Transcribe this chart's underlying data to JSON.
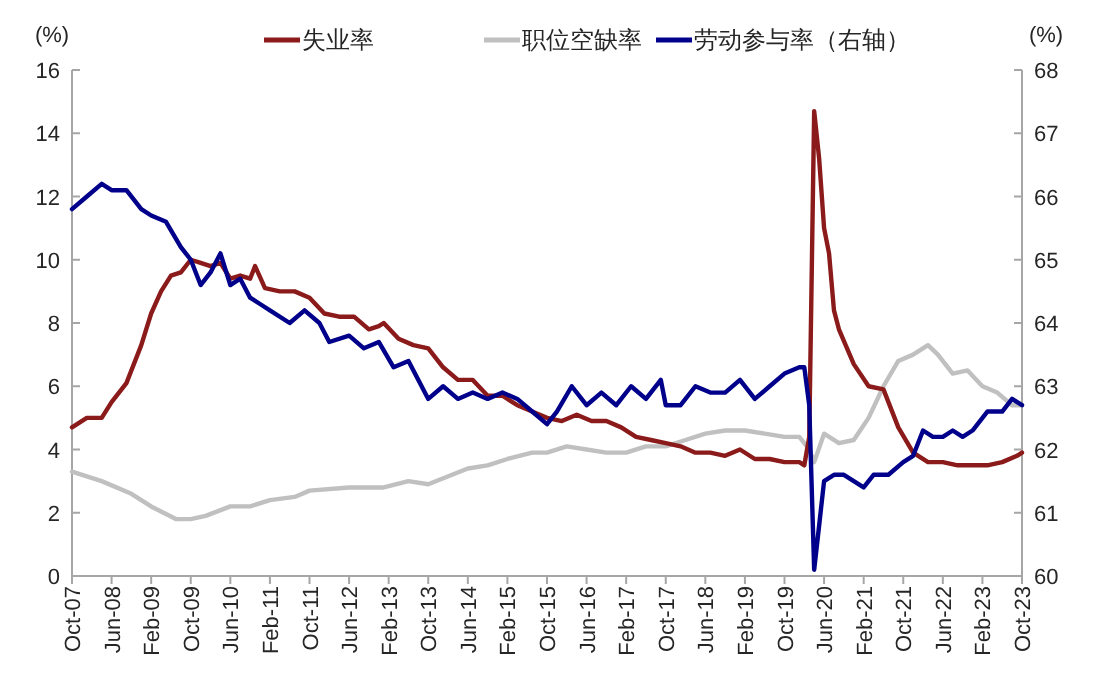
{
  "chart_data": {
    "type": "line",
    "ylabel": "(%)",
    "y2label": "(%)",
    "legend": "top",
    "grid": false,
    "line_style": "solid",
    "marker": "none",
    "xlim": [
      "2007-10",
      "2023-10"
    ],
    "xticks": [
      {
        "value": "2007-10",
        "label": "Oct-07"
      },
      {
        "value": "2008-06",
        "label": "Jun-08"
      },
      {
        "value": "2009-02",
        "label": "Feb-09"
      },
      {
        "value": "2009-10",
        "label": "Oct-09"
      },
      {
        "value": "2010-06",
        "label": "Jun-10"
      },
      {
        "value": "2011-02",
        "label": "Feb-11"
      },
      {
        "value": "2011-10",
        "label": "Oct-11"
      },
      {
        "value": "2012-06",
        "label": "Jun-12"
      },
      {
        "value": "2013-02",
        "label": "Feb-13"
      },
      {
        "value": "2013-10",
        "label": "Oct-13"
      },
      {
        "value": "2014-06",
        "label": "Jun-14"
      },
      {
        "value": "2015-02",
        "label": "Feb-15"
      },
      {
        "value": "2015-10",
        "label": "Oct-15"
      },
      {
        "value": "2016-06",
        "label": "Jun-16"
      },
      {
        "value": "2017-02",
        "label": "Feb-17"
      },
      {
        "value": "2017-10",
        "label": "Oct-17"
      },
      {
        "value": "2018-06",
        "label": "Jun-18"
      },
      {
        "value": "2019-02",
        "label": "Feb-19"
      },
      {
        "value": "2019-10",
        "label": "Oct-19"
      },
      {
        "value": "2020-06",
        "label": "Jun-20"
      },
      {
        "value": "2021-02",
        "label": "Feb-21"
      },
      {
        "value": "2021-10",
        "label": "Oct-21"
      },
      {
        "value": "2022-06",
        "label": "Jun-22"
      },
      {
        "value": "2023-02",
        "label": "Feb-23"
      },
      {
        "value": "2023-10",
        "label": "Oct-23"
      }
    ],
    "ylim": [
      0,
      16
    ],
    "yticks": [
      0,
      2,
      4,
      6,
      8,
      10,
      12,
      14,
      16
    ],
    "y2lim": [
      60,
      68
    ],
    "y2ticks": [
      60,
      61,
      62,
      63,
      64,
      65,
      66,
      67,
      68
    ],
    "series": [
      {
        "name": "失业率",
        "color": "#8b1a1a",
        "x": [
          "2007-10",
          "2008-01",
          "2008-04",
          "2008-06",
          "2008-09",
          "2008-12",
          "2009-02",
          "2009-04",
          "2009-06",
          "2009-08",
          "2009-10",
          "2009-12",
          "2010-02",
          "2010-04",
          "2010-06",
          "2010-08",
          "2010-10",
          "2010-11",
          "2011-01",
          "2011-04",
          "2011-07",
          "2011-10",
          "2012-01",
          "2012-04",
          "2012-07",
          "2012-10",
          "2012-12",
          "2013-01",
          "2013-04",
          "2013-07",
          "2013-10",
          "2014-01",
          "2014-04",
          "2014-07",
          "2014-10",
          "2015-01",
          "2015-04",
          "2015-07",
          "2015-10",
          "2016-01",
          "2016-04",
          "2016-07",
          "2016-10",
          "2017-01",
          "2017-04",
          "2017-07",
          "2017-10",
          "2018-01",
          "2018-04",
          "2018-07",
          "2018-10",
          "2019-01",
          "2019-04",
          "2019-07",
          "2019-10",
          "2020-01",
          "2020-02",
          "2020-03",
          "2020-04",
          "2020-05",
          "2020-06",
          "2020-07",
          "2020-08",
          "2020-09",
          "2020-12",
          "2021-03",
          "2021-06",
          "2021-09",
          "2021-12",
          "2022-03",
          "2022-06",
          "2022-09",
          "2022-12",
          "2023-03",
          "2023-06",
          "2023-09",
          "2023-10"
        ],
        "values": [
          4.7,
          5.0,
          5.0,
          5.5,
          6.1,
          7.3,
          8.3,
          9.0,
          9.5,
          9.6,
          10.0,
          9.9,
          9.8,
          9.9,
          9.4,
          9.5,
          9.4,
          9.8,
          9.1,
          9.0,
          9.0,
          8.8,
          8.3,
          8.2,
          8.2,
          7.8,
          7.9,
          8.0,
          7.5,
          7.3,
          7.2,
          6.6,
          6.2,
          6.2,
          5.7,
          5.7,
          5.4,
          5.2,
          5.0,
          4.9,
          5.1,
          4.9,
          4.9,
          4.7,
          4.4,
          4.3,
          4.2,
          4.1,
          3.9,
          3.9,
          3.8,
          4.0,
          3.7,
          3.7,
          3.6,
          3.6,
          3.5,
          4.4,
          14.7,
          13.2,
          11.0,
          10.2,
          8.4,
          7.8,
          6.7,
          6.0,
          5.9,
          4.7,
          3.9,
          3.6,
          3.6,
          3.5,
          3.5,
          3.5,
          3.6,
          3.8,
          3.9
        ]
      },
      {
        "name": "职位空缺率",
        "color": "#c0c0c0",
        "x": [
          "2007-10",
          "2008-04",
          "2008-10",
          "2009-02",
          "2009-07",
          "2009-10",
          "2010-01",
          "2010-06",
          "2010-10",
          "2011-02",
          "2011-07",
          "2011-10",
          "2012-06",
          "2013-01",
          "2013-06",
          "2013-10",
          "2014-06",
          "2014-10",
          "2015-02",
          "2015-07",
          "2015-10",
          "2016-02",
          "2016-06",
          "2016-10",
          "2017-02",
          "2017-06",
          "2017-10",
          "2018-02",
          "2018-06",
          "2018-10",
          "2019-02",
          "2019-06",
          "2019-10",
          "2020-01",
          "2020-03",
          "2020-04",
          "2020-06",
          "2020-09",
          "2020-12",
          "2021-03",
          "2021-06",
          "2021-09",
          "2021-12",
          "2022-03",
          "2022-05",
          "2022-08",
          "2022-11",
          "2023-02",
          "2023-05",
          "2023-08",
          "2023-10"
        ],
        "values": [
          3.3,
          3.0,
          2.6,
          2.2,
          1.8,
          1.8,
          1.9,
          2.2,
          2.2,
          2.4,
          2.5,
          2.7,
          2.8,
          2.8,
          3.0,
          2.9,
          3.4,
          3.5,
          3.7,
          3.9,
          3.9,
          4.1,
          4.0,
          3.9,
          3.9,
          4.1,
          4.1,
          4.3,
          4.5,
          4.6,
          4.6,
          4.5,
          4.4,
          4.4,
          4.0,
          3.6,
          4.5,
          4.2,
          4.3,
          5.0,
          6.0,
          6.8,
          7.0,
          7.3,
          7.0,
          6.4,
          6.5,
          6.0,
          5.8,
          5.4,
          5.4
        ]
      },
      {
        "name": "劳动参与率（右轴）",
        "color": "#00008b",
        "axis": "y2",
        "x": [
          "2007-10",
          "2008-01",
          "2008-04",
          "2008-06",
          "2008-09",
          "2008-12",
          "2009-02",
          "2009-05",
          "2009-08",
          "2009-10",
          "2009-12",
          "2010-02",
          "2010-04",
          "2010-06",
          "2010-08",
          "2010-10",
          "2010-12",
          "2011-02",
          "2011-06",
          "2011-09",
          "2011-12",
          "2012-02",
          "2012-06",
          "2012-09",
          "2012-12",
          "2013-03",
          "2013-06",
          "2013-10",
          "2014-01",
          "2014-04",
          "2014-07",
          "2014-10",
          "2015-01",
          "2015-04",
          "2015-07",
          "2015-10",
          "2015-12",
          "2016-03",
          "2016-06",
          "2016-09",
          "2016-12",
          "2017-03",
          "2017-06",
          "2017-09",
          "2017-10",
          "2018-01",
          "2018-04",
          "2018-07",
          "2018-10",
          "2019-01",
          "2019-04",
          "2019-07",
          "2019-10",
          "2020-01",
          "2020-02",
          "2020-03",
          "2020-04",
          "2020-05",
          "2020-06",
          "2020-08",
          "2020-10",
          "2020-12",
          "2021-02",
          "2021-04",
          "2021-07",
          "2021-10",
          "2021-12",
          "2022-02",
          "2022-04",
          "2022-06",
          "2022-08",
          "2022-10",
          "2022-12",
          "2023-03",
          "2023-06",
          "2023-08",
          "2023-10"
        ],
        "values": [
          65.8,
          66.0,
          66.2,
          66.1,
          66.1,
          65.8,
          65.7,
          65.6,
          65.2,
          65.0,
          64.6,
          64.8,
          65.1,
          64.6,
          64.7,
          64.4,
          64.3,
          64.2,
          64.0,
          64.2,
          64.0,
          63.7,
          63.8,
          63.6,
          63.7,
          63.3,
          63.4,
          62.8,
          63.0,
          62.8,
          62.9,
          62.8,
          62.9,
          62.8,
          62.6,
          62.4,
          62.6,
          63.0,
          62.7,
          62.9,
          62.7,
          63.0,
          62.8,
          63.1,
          62.7,
          62.7,
          63.0,
          62.9,
          62.9,
          63.1,
          62.8,
          63.0,
          63.2,
          63.3,
          63.3,
          62.7,
          60.1,
          60.8,
          61.5,
          61.6,
          61.6,
          61.5,
          61.4,
          61.6,
          61.6,
          61.8,
          61.9,
          62.3,
          62.2,
          62.2,
          62.3,
          62.2,
          62.3,
          62.6,
          62.6,
          62.8,
          62.7
        ]
      }
    ]
  }
}
